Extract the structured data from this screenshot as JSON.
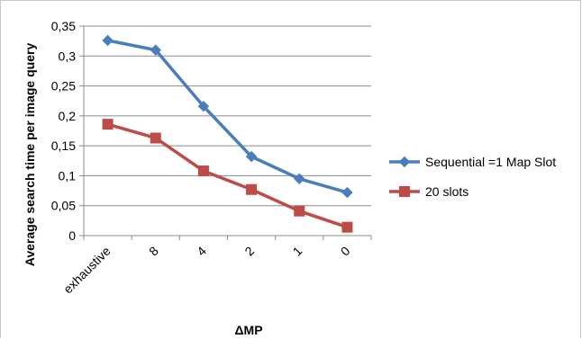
{
  "chart_data": {
    "type": "line",
    "title": "",
    "xlabel": "ΔMP",
    "ylabel": "Average search time per image query",
    "categories": [
      "exhaustive",
      "8",
      "4",
      "2",
      "1",
      "0"
    ],
    "ylim": [
      0,
      0.35
    ],
    "yticks": [
      "0",
      "0,05",
      "0,1",
      "0,15",
      "0,2",
      "0,25",
      "0,3",
      "0,35"
    ],
    "ytick_values": [
      0,
      0.05,
      0.1,
      0.15,
      0.2,
      0.25,
      0.3,
      0.35
    ],
    "grid": true,
    "legend_position": "right",
    "series": [
      {
        "name": "Sequential =1 Map Slot",
        "values": [
          0.326,
          0.31,
          0.216,
          0.132,
          0.095,
          0.072
        ],
        "color": "#4a7ebb",
        "marker": "diamond"
      },
      {
        "name": "20 slots",
        "values": [
          0.186,
          0.163,
          0.108,
          0.077,
          0.041,
          0.014
        ],
        "color": "#be4b48",
        "marker": "square"
      }
    ]
  }
}
